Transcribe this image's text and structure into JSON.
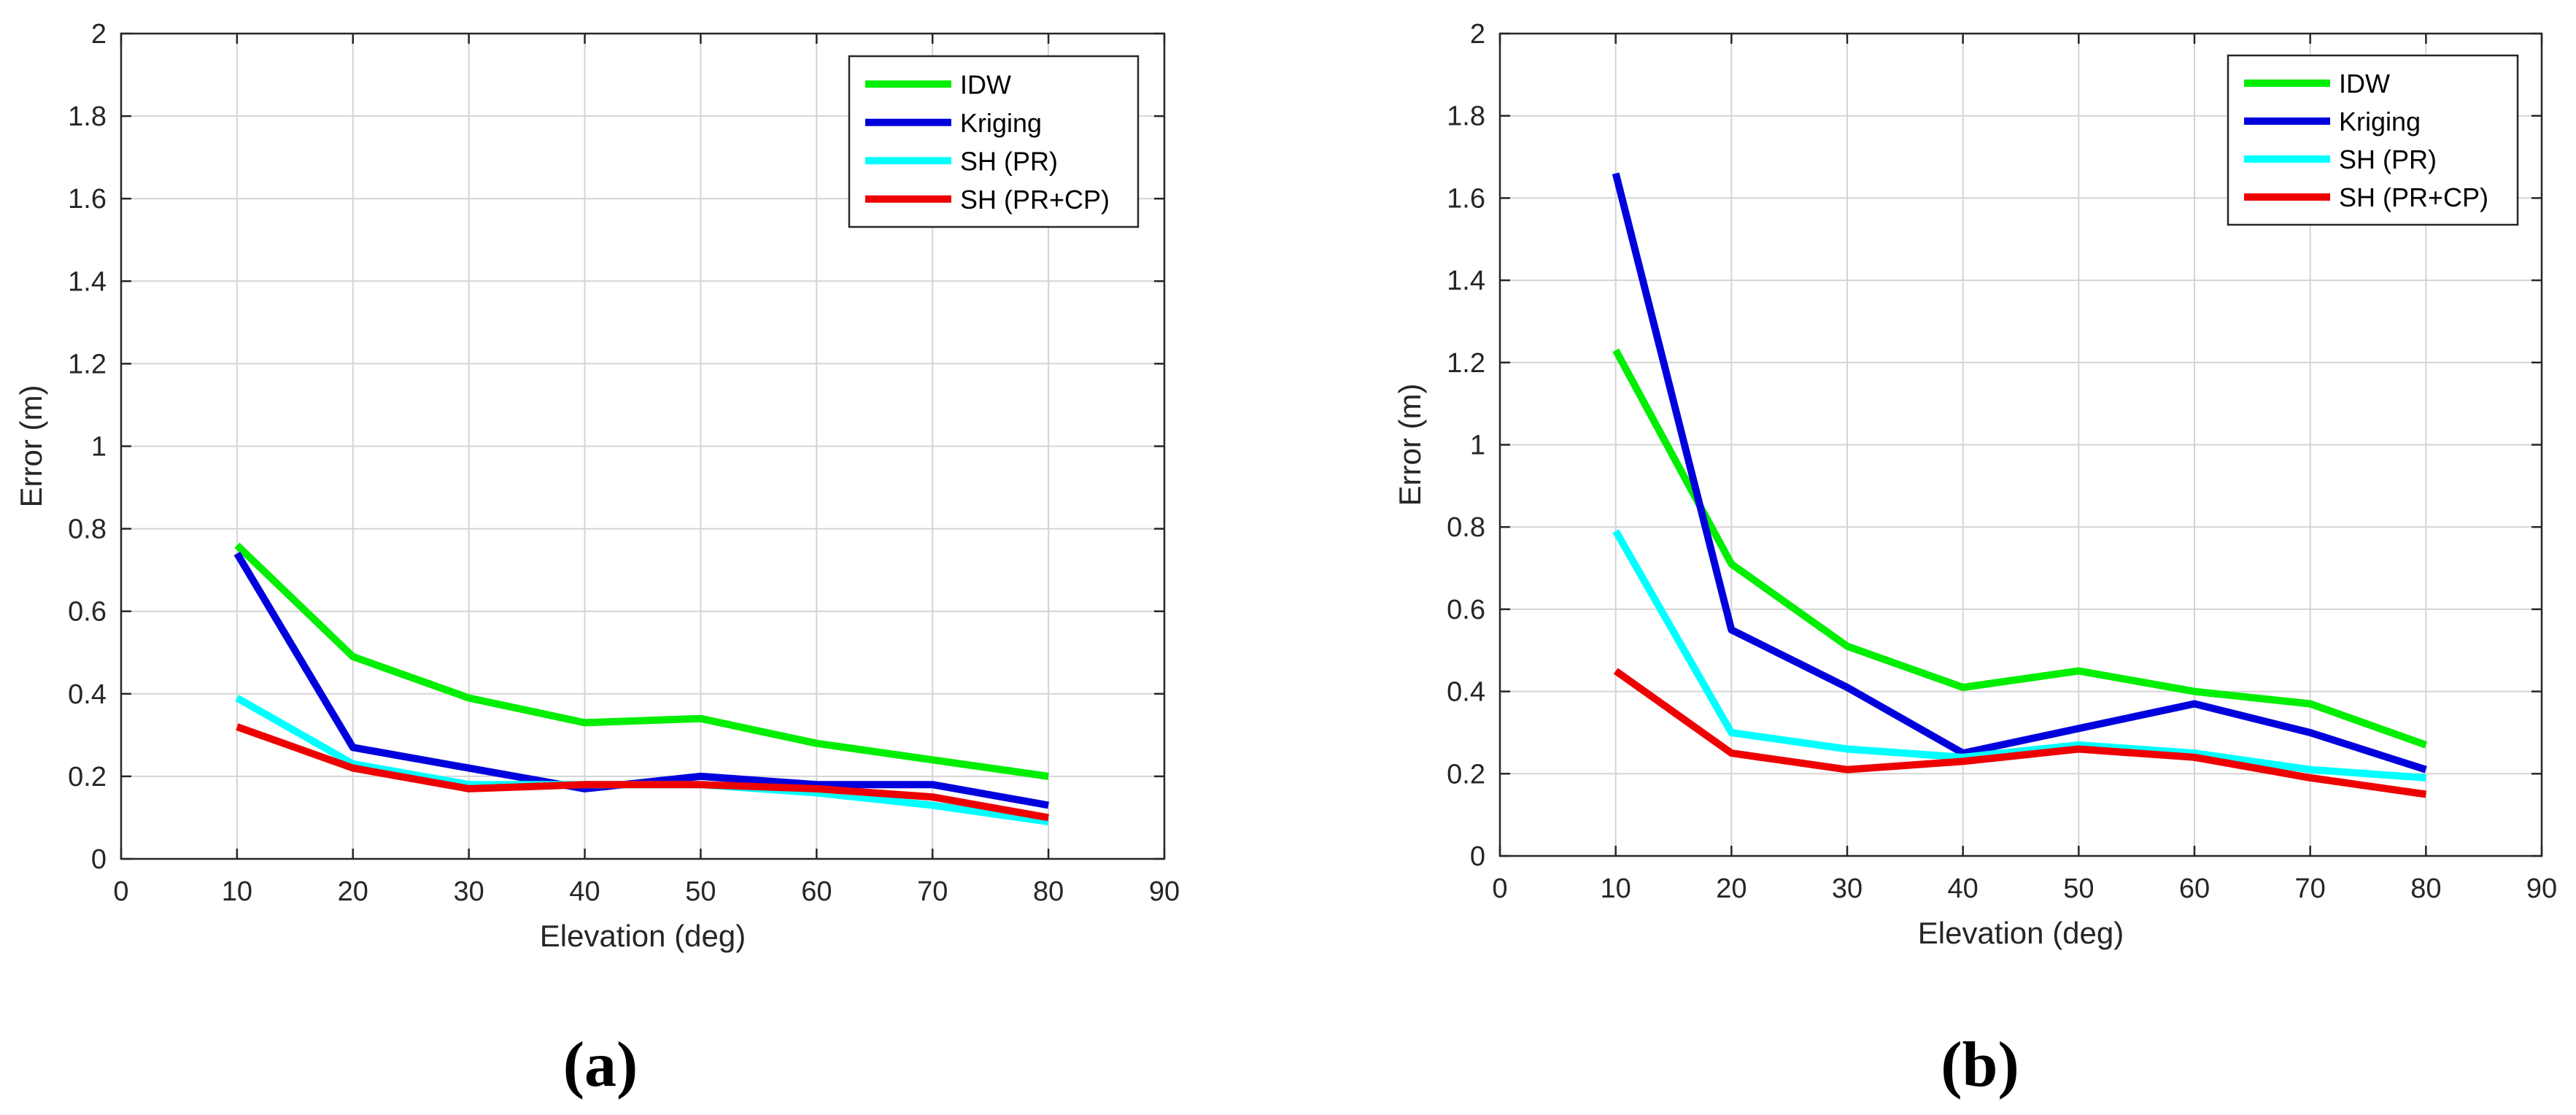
{
  "chart_data": [
    {
      "type": "line",
      "panel_label": "(a)",
      "xlabel": "Elevation (deg)",
      "ylabel": "Error (m)",
      "xlim": [
        0,
        90
      ],
      "ylim": [
        0,
        2
      ],
      "xticks": [
        0,
        10,
        20,
        30,
        40,
        50,
        60,
        70,
        80,
        90
      ],
      "yticks": [
        0,
        0.2,
        0.4,
        0.6,
        0.8,
        1,
        1.2,
        1.4,
        1.6,
        1.8,
        2
      ],
      "ytick_labels": [
        "0",
        "0.2",
        "0.4",
        "0.6",
        "0.8",
        "1",
        "1.2",
        "1.4",
        "1.6",
        "1.8",
        "2"
      ],
      "grid": true,
      "legend_position": "top-right",
      "x": [
        10,
        20,
        30,
        40,
        50,
        60,
        70,
        80
      ],
      "series": [
        {
          "name": "IDW",
          "color": "#00ee00",
          "values": [
            0.76,
            0.49,
            0.39,
            0.33,
            0.34,
            0.28,
            0.24,
            0.2
          ]
        },
        {
          "name": "Kriging",
          "color": "#0000dd",
          "values": [
            0.74,
            0.27,
            0.22,
            0.17,
            0.2,
            0.18,
            0.18,
            0.13
          ]
        },
        {
          "name": "SH (PR)",
          "color": "#00ffff",
          "values": [
            0.39,
            0.23,
            0.18,
            0.18,
            0.18,
            0.16,
            0.13,
            0.09
          ]
        },
        {
          "name": "SH (PR+CP)",
          "color": "#ee0000",
          "values": [
            0.32,
            0.22,
            0.17,
            0.18,
            0.18,
            0.17,
            0.15,
            0.1
          ]
        }
      ]
    },
    {
      "type": "line",
      "panel_label": "(b)",
      "xlabel": "Elevation (deg)",
      "ylabel": "Error (m)",
      "xlim": [
        0,
        90
      ],
      "ylim": [
        0,
        2
      ],
      "xticks": [
        0,
        10,
        20,
        30,
        40,
        50,
        60,
        70,
        80,
        90
      ],
      "yticks": [
        0,
        0.2,
        0.4,
        0.6,
        0.8,
        1,
        1.2,
        1.4,
        1.6,
        1.8,
        2
      ],
      "ytick_labels": [
        "0",
        "0.2",
        "0.4",
        "0.6",
        "0.8",
        "1",
        "1.2",
        "1.4",
        "1.6",
        "1.8",
        "2"
      ],
      "grid": true,
      "legend_position": "top-right",
      "x": [
        10,
        20,
        30,
        40,
        50,
        60,
        70,
        80
      ],
      "series": [
        {
          "name": "IDW",
          "color": "#00ee00",
          "values": [
            1.23,
            0.71,
            0.51,
            0.41,
            0.45,
            0.4,
            0.37,
            0.27
          ]
        },
        {
          "name": "Kriging",
          "color": "#0000dd",
          "values": [
            1.66,
            0.55,
            0.41,
            0.25,
            0.31,
            0.37,
            0.3,
            0.21
          ]
        },
        {
          "name": "SH (PR)",
          "color": "#00ffff",
          "values": [
            0.79,
            0.3,
            0.26,
            0.24,
            0.27,
            0.25,
            0.21,
            0.19
          ]
        },
        {
          "name": "SH (PR+CP)",
          "color": "#ee0000",
          "values": [
            0.45,
            0.25,
            0.21,
            0.23,
            0.26,
            0.24,
            0.19,
            0.15
          ]
        }
      ]
    }
  ]
}
